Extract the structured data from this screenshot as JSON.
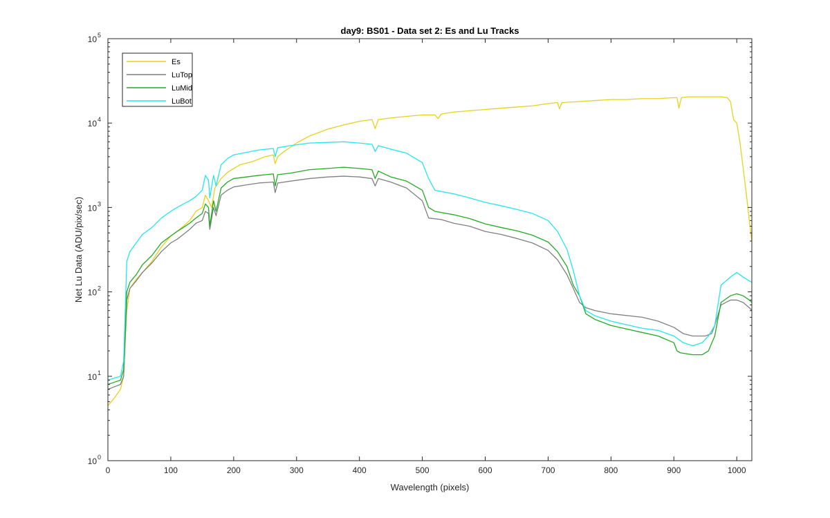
{
  "chart_data": {
    "type": "line",
    "title": "day9: BS01 - Data set 2: Es and Lu Tracks",
    "xlabel": "Wavelength (pixels)",
    "ylabel": "Net Lu Data (ADU/pix/sec)",
    "xlim": [
      0,
      1024
    ],
    "ylim": [
      1,
      100000
    ],
    "yscale": "log",
    "xticks": [
      0,
      100,
      200,
      300,
      400,
      500,
      600,
      700,
      800,
      900,
      1000
    ],
    "yticks": [
      {
        "value": 1,
        "base": "10",
        "exp": "0"
      },
      {
        "value": 10,
        "base": "10",
        "exp": "1"
      },
      {
        "value": 100,
        "base": "10",
        "exp": "2"
      },
      {
        "value": 1000,
        "base": "10",
        "exp": "3"
      },
      {
        "value": 10000,
        "base": "10",
        "exp": "4"
      },
      {
        "value": 100000,
        "base": "10",
        "exp": "5"
      }
    ],
    "grid": false,
    "legend_position": "top-left",
    "series": [
      {
        "name": "Es",
        "color": "#e6d21a",
        "points": [
          [
            0,
            4.5
          ],
          [
            10,
            5.5
          ],
          [
            20,
            7
          ],
          [
            25,
            10
          ],
          [
            30,
            60
          ],
          [
            35,
            110
          ],
          [
            45,
            140
          ],
          [
            55,
            170
          ],
          [
            70,
            230
          ],
          [
            85,
            340
          ],
          [
            100,
            460
          ],
          [
            110,
            520
          ],
          [
            120,
            600
          ],
          [
            130,
            700
          ],
          [
            140,
            900
          ],
          [
            150,
            1000
          ],
          [
            155,
            1400
          ],
          [
            160,
            1200
          ],
          [
            165,
            1000
          ],
          [
            170,
            1700
          ],
          [
            180,
            2200
          ],
          [
            190,
            2600
          ],
          [
            200,
            2900
          ],
          [
            210,
            3200
          ],
          [
            230,
            3500
          ],
          [
            250,
            4000
          ],
          [
            263,
            4200
          ],
          [
            266,
            3300
          ],
          [
            270,
            4000
          ],
          [
            280,
            4600
          ],
          [
            300,
            5800
          ],
          [
            320,
            7000
          ],
          [
            350,
            8500
          ],
          [
            375,
            9500
          ],
          [
            400,
            10500
          ],
          [
            420,
            11000
          ],
          [
            425,
            8600
          ],
          [
            430,
            11000
          ],
          [
            450,
            11500
          ],
          [
            475,
            12000
          ],
          [
            500,
            12500
          ],
          [
            520,
            12500
          ],
          [
            525,
            11300
          ],
          [
            530,
            12800
          ],
          [
            550,
            13500
          ],
          [
            575,
            14000
          ],
          [
            600,
            14500
          ],
          [
            625,
            15000
          ],
          [
            650,
            15500
          ],
          [
            675,
            16000
          ],
          [
            700,
            17000
          ],
          [
            715,
            17500
          ],
          [
            718,
            14800
          ],
          [
            722,
            17500
          ],
          [
            750,
            18000
          ],
          [
            775,
            18500
          ],
          [
            800,
            19000
          ],
          [
            825,
            19000
          ],
          [
            850,
            19500
          ],
          [
            875,
            19500
          ],
          [
            900,
            20000
          ],
          [
            905,
            20000
          ],
          [
            908,
            15000
          ],
          [
            912,
            20000
          ],
          [
            925,
            20500
          ],
          [
            950,
            20500
          ],
          [
            975,
            20500
          ],
          [
            985,
            20000
          ],
          [
            990,
            18000
          ],
          [
            995,
            11000
          ],
          [
            1000,
            10000
          ],
          [
            1005,
            6000
          ],
          [
            1010,
            3000
          ],
          [
            1015,
            1500
          ],
          [
            1020,
            700
          ],
          [
            1024,
            400
          ]
        ]
      },
      {
        "name": "LuTop",
        "color": "#7f7f7f",
        "points": [
          [
            0,
            7
          ],
          [
            10,
            7.5
          ],
          [
            20,
            8
          ],
          [
            25,
            10
          ],
          [
            30,
            80
          ],
          [
            35,
            110
          ],
          [
            45,
            135
          ],
          [
            55,
            170
          ],
          [
            70,
            220
          ],
          [
            85,
            300
          ],
          [
            100,
            380
          ],
          [
            110,
            420
          ],
          [
            120,
            480
          ],
          [
            130,
            550
          ],
          [
            140,
            650
          ],
          [
            150,
            700
          ],
          [
            155,
            900
          ],
          [
            160,
            850
          ],
          [
            162,
            550
          ],
          [
            168,
            1000
          ],
          [
            172,
            800
          ],
          [
            180,
            1400
          ],
          [
            190,
            1600
          ],
          [
            200,
            1750
          ],
          [
            220,
            1850
          ],
          [
            240,
            1950
          ],
          [
            263,
            2000
          ],
          [
            266,
            1500
          ],
          [
            270,
            1950
          ],
          [
            290,
            2050
          ],
          [
            320,
            2200
          ],
          [
            350,
            2300
          ],
          [
            375,
            2350
          ],
          [
            400,
            2300
          ],
          [
            420,
            2200
          ],
          [
            425,
            1800
          ],
          [
            430,
            2200
          ],
          [
            450,
            2000
          ],
          [
            475,
            1700
          ],
          [
            500,
            1200
          ],
          [
            510,
            750
          ],
          [
            530,
            720
          ],
          [
            550,
            650
          ],
          [
            575,
            600
          ],
          [
            600,
            520
          ],
          [
            625,
            480
          ],
          [
            650,
            430
          ],
          [
            675,
            380
          ],
          [
            700,
            310
          ],
          [
            715,
            240
          ],
          [
            730,
            160
          ],
          [
            740,
            110
          ],
          [
            750,
            75
          ],
          [
            760,
            65
          ],
          [
            775,
            60
          ],
          [
            800,
            55
          ],
          [
            850,
            50
          ],
          [
            875,
            45
          ],
          [
            900,
            38
          ],
          [
            915,
            32
          ],
          [
            930,
            30
          ],
          [
            950,
            30
          ],
          [
            960,
            32
          ],
          [
            965,
            40
          ],
          [
            975,
            70
          ],
          [
            990,
            80
          ],
          [
            1000,
            80
          ],
          [
            1010,
            75
          ],
          [
            1020,
            65
          ],
          [
            1024,
            60
          ]
        ]
      },
      {
        "name": "LuMid",
        "color": "#22aa22",
        "points": [
          [
            0,
            8
          ],
          [
            10,
            8.5
          ],
          [
            20,
            9
          ],
          [
            25,
            12
          ],
          [
            30,
            100
          ],
          [
            35,
            130
          ],
          [
            45,
            160
          ],
          [
            55,
            210
          ],
          [
            70,
            270
          ],
          [
            85,
            380
          ],
          [
            100,
            460
          ],
          [
            110,
            520
          ],
          [
            120,
            580
          ],
          [
            130,
            650
          ],
          [
            140,
            750
          ],
          [
            150,
            850
          ],
          [
            155,
            1100
          ],
          [
            160,
            1000
          ],
          [
            162,
            600
          ],
          [
            168,
            1200
          ],
          [
            172,
            900
          ],
          [
            180,
            1700
          ],
          [
            190,
            2000
          ],
          [
            200,
            2200
          ],
          [
            220,
            2300
          ],
          [
            240,
            2400
          ],
          [
            263,
            2500
          ],
          [
            266,
            1800
          ],
          [
            270,
            2450
          ],
          [
            290,
            2550
          ],
          [
            320,
            2800
          ],
          [
            350,
            2900
          ],
          [
            375,
            3000
          ],
          [
            400,
            2900
          ],
          [
            420,
            2800
          ],
          [
            425,
            2200
          ],
          [
            430,
            2700
          ],
          [
            450,
            2300
          ],
          [
            475,
            2050
          ],
          [
            500,
            1600
          ],
          [
            510,
            1000
          ],
          [
            520,
            900
          ],
          [
            550,
            820
          ],
          [
            575,
            740
          ],
          [
            600,
            640
          ],
          [
            625,
            580
          ],
          [
            650,
            530
          ],
          [
            675,
            470
          ],
          [
            700,
            390
          ],
          [
            715,
            300
          ],
          [
            730,
            200
          ],
          [
            740,
            120
          ],
          [
            750,
            90
          ],
          [
            760,
            55
          ],
          [
            775,
            47
          ],
          [
            800,
            40
          ],
          [
            850,
            33
          ],
          [
            875,
            30
          ],
          [
            900,
            25
          ],
          [
            905,
            20
          ],
          [
            910,
            19
          ],
          [
            930,
            18
          ],
          [
            945,
            18
          ],
          [
            955,
            20
          ],
          [
            965,
            30
          ],
          [
            975,
            75
          ],
          [
            990,
            90
          ],
          [
            1000,
            95
          ],
          [
            1010,
            90
          ],
          [
            1020,
            80
          ],
          [
            1024,
            75
          ]
        ]
      },
      {
        "name": "LuBot",
        "color": "#22e6ee",
        "points": [
          [
            0,
            9
          ],
          [
            10,
            9.5
          ],
          [
            20,
            10
          ],
          [
            25,
            15
          ],
          [
            30,
            230
          ],
          [
            35,
            300
          ],
          [
            45,
            380
          ],
          [
            55,
            480
          ],
          [
            70,
            580
          ],
          [
            85,
            750
          ],
          [
            100,
            900
          ],
          [
            110,
            1000
          ],
          [
            120,
            1100
          ],
          [
            130,
            1200
          ],
          [
            140,
            1350
          ],
          [
            150,
            1600
          ],
          [
            155,
            2400
          ],
          [
            160,
            2100
          ],
          [
            162,
            1300
          ],
          [
            168,
            2400
          ],
          [
            172,
            1800
          ],
          [
            180,
            3200
          ],
          [
            190,
            3800
          ],
          [
            200,
            4200
          ],
          [
            220,
            4500
          ],
          [
            240,
            4800
          ],
          [
            263,
            5000
          ],
          [
            266,
            4000
          ],
          [
            270,
            5100
          ],
          [
            290,
            5400
          ],
          [
            320,
            5800
          ],
          [
            350,
            5900
          ],
          [
            375,
            6000
          ],
          [
            400,
            5800
          ],
          [
            420,
            5600
          ],
          [
            425,
            4600
          ],
          [
            430,
            5400
          ],
          [
            450,
            4900
          ],
          [
            475,
            4400
          ],
          [
            500,
            3400
          ],
          [
            510,
            2200
          ],
          [
            520,
            1600
          ],
          [
            550,
            1450
          ],
          [
            575,
            1300
          ],
          [
            600,
            1150
          ],
          [
            625,
            1050
          ],
          [
            650,
            950
          ],
          [
            675,
            850
          ],
          [
            700,
            700
          ],
          [
            715,
            520
          ],
          [
            730,
            320
          ],
          [
            740,
            180
          ],
          [
            750,
            90
          ],
          [
            760,
            60
          ],
          [
            775,
            52
          ],
          [
            800,
            45
          ],
          [
            850,
            37
          ],
          [
            875,
            35
          ],
          [
            900,
            30
          ],
          [
            915,
            25
          ],
          [
            930,
            23
          ],
          [
            945,
            25
          ],
          [
            955,
            30
          ],
          [
            965,
            40
          ],
          [
            975,
            120
          ],
          [
            990,
            150
          ],
          [
            1000,
            170
          ],
          [
            1010,
            150
          ],
          [
            1020,
            135
          ],
          [
            1024,
            130
          ]
        ]
      }
    ]
  }
}
